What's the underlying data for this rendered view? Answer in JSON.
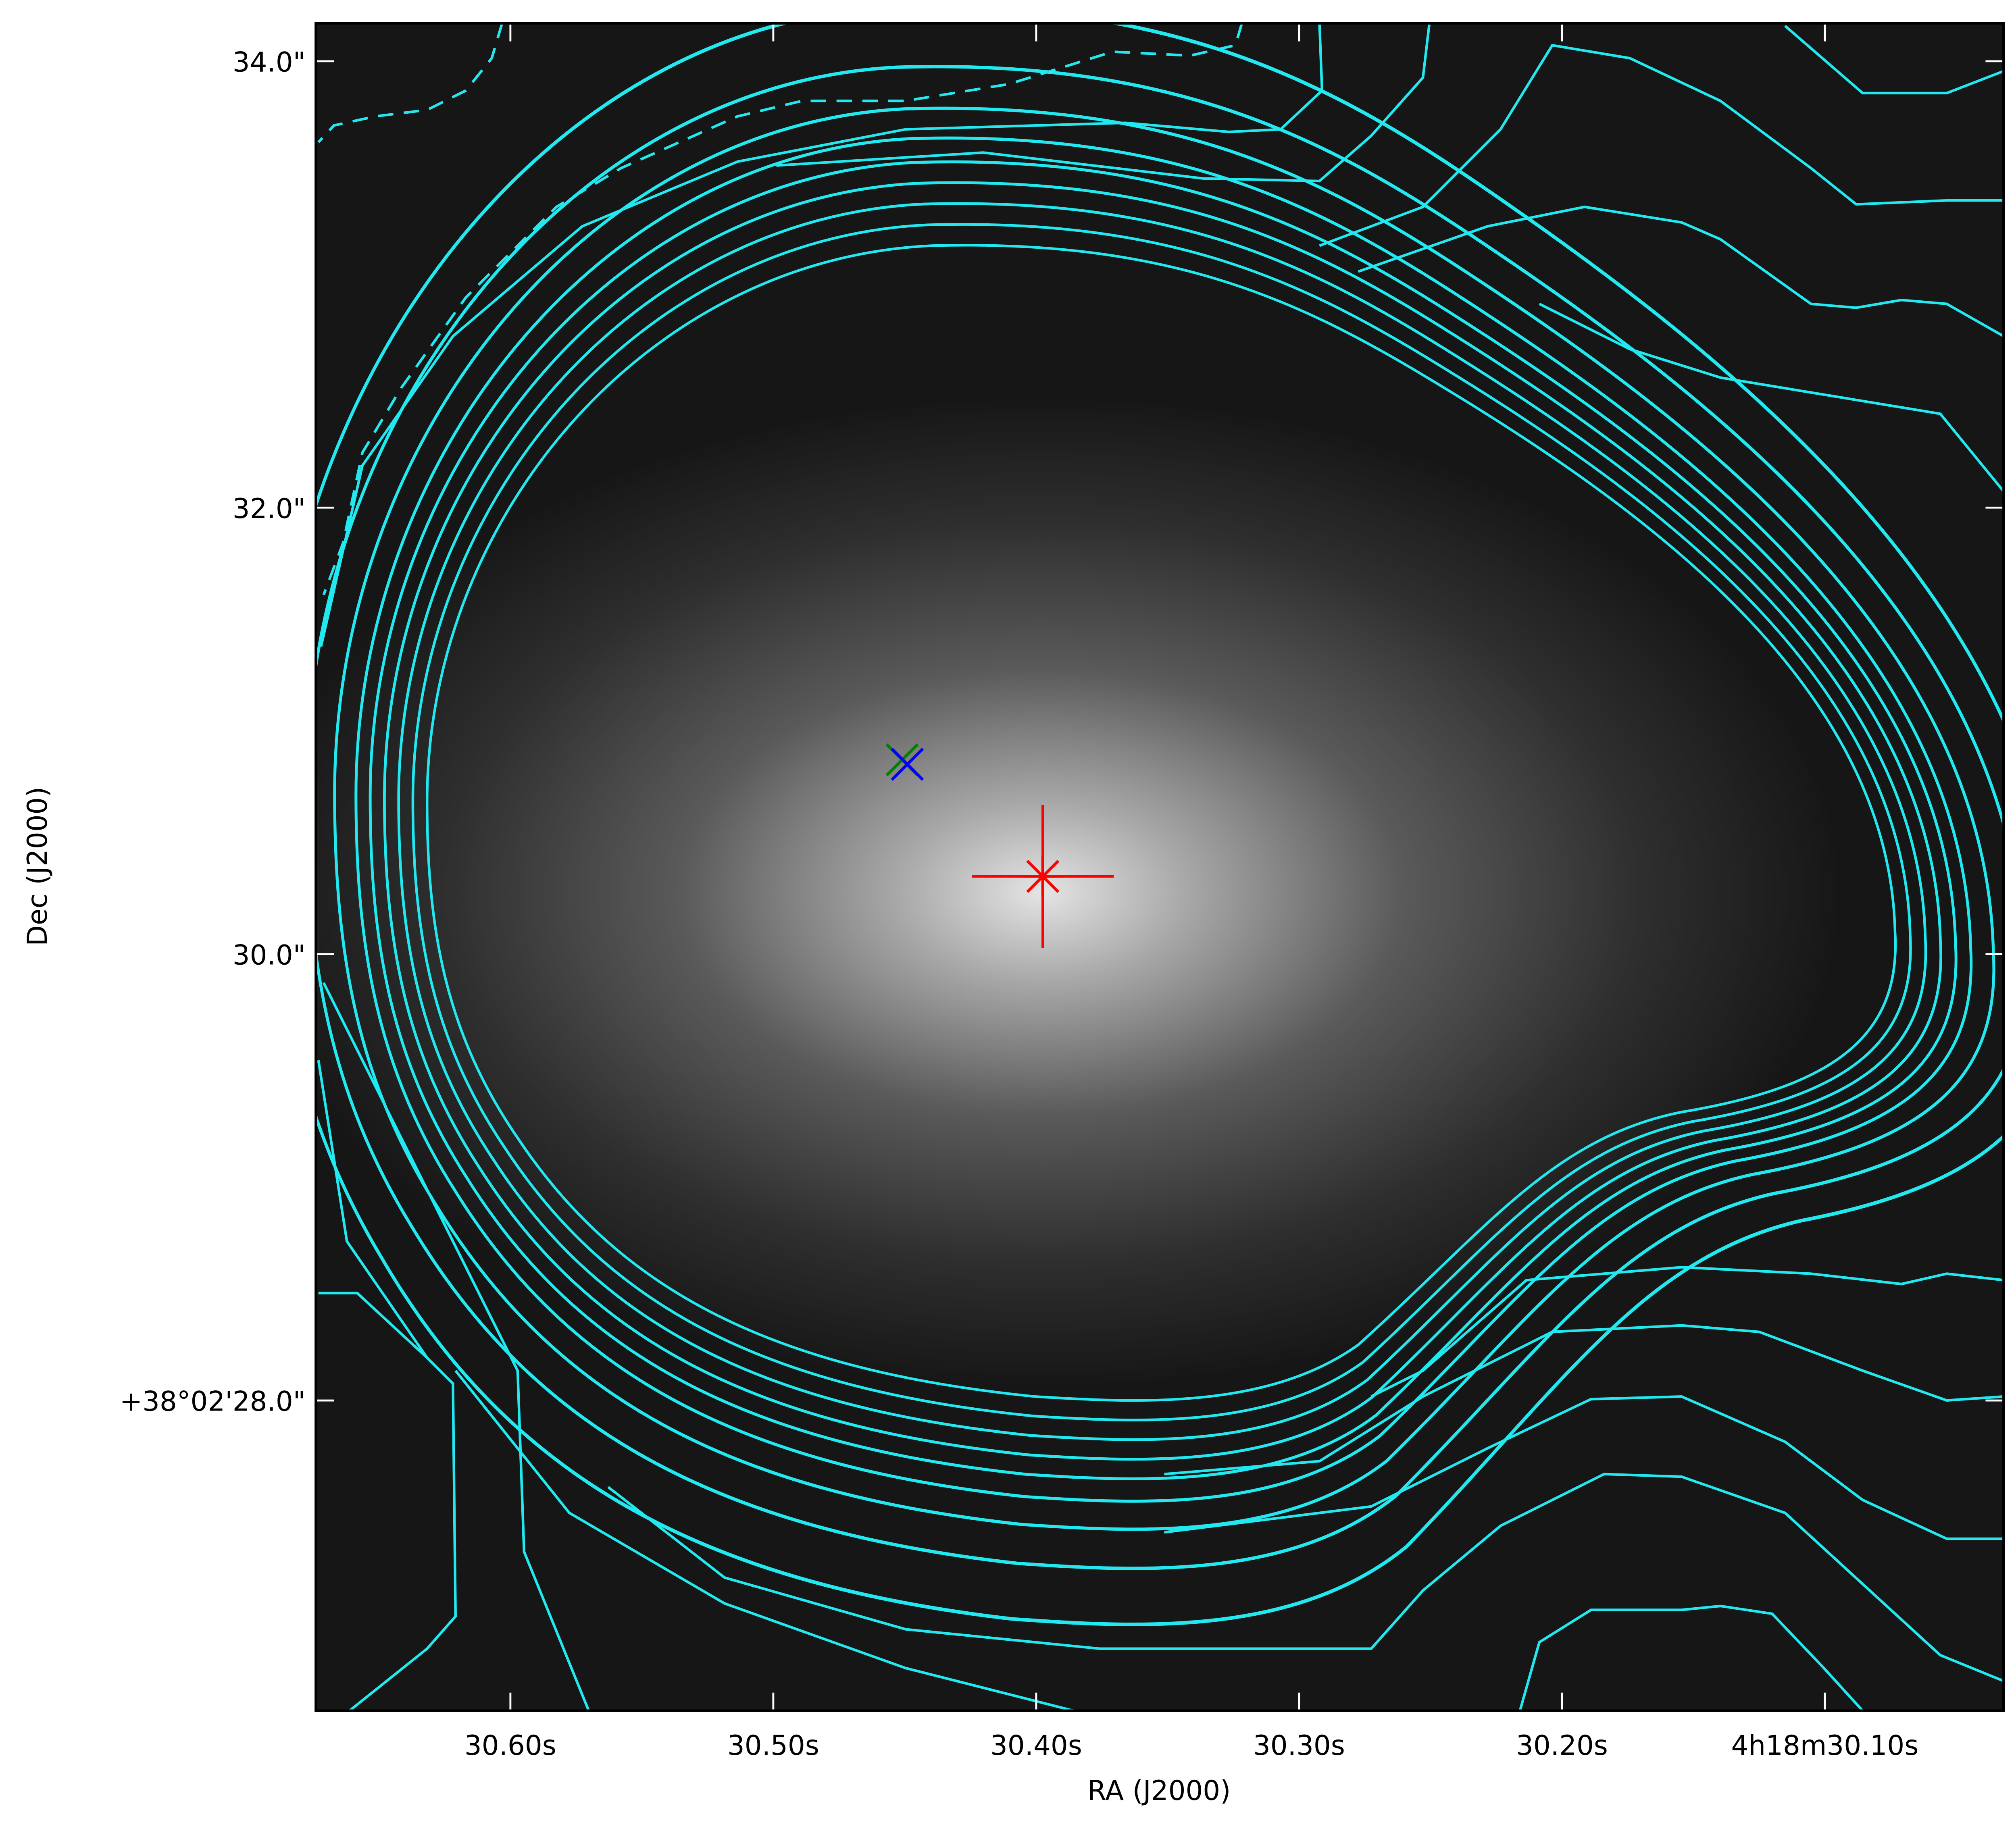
{
  "chart_data": {
    "type": "scatter",
    "xlabel": "RA (J2000)",
    "ylabel": "Dec (J2000)",
    "xlim": [
      30.674,
      30.032
    ],
    "ylim": [
      26.61,
      34.17
    ],
    "xticks": [
      {
        "value": 30.6,
        "label": "30.60s"
      },
      {
        "value": 30.5,
        "label": "30.50s"
      },
      {
        "value": 30.4,
        "label": "30.40s"
      },
      {
        "value": 30.3,
        "label": "30.30s"
      },
      {
        "value": 30.2,
        "label": "30.20s"
      },
      {
        "value": 30.1,
        "label": "4h18m30.10s"
      }
    ],
    "yticks": [
      {
        "value": 28,
        "label": "+38°02'28.0\""
      },
      {
        "value": 30,
        "label": "30.0\""
      },
      {
        "value": 32,
        "label": "32.0\""
      },
      {
        "value": 34,
        "label": "34.0\""
      }
    ],
    "series": [
      {
        "marker": "star",
        "color": "#ff0000",
        "x": [
          30.3975
        ],
        "values": [
          30.348
        ],
        "x_err": [
          0.027
        ],
        "y_err": [
          0.32
        ]
      },
      {
        "marker": "x",
        "color": "#008000",
        "x": [
          30.451
        ],
        "values": [
          30.87
        ]
      },
      {
        "marker": "x",
        "color": "#0000ff",
        "x": [
          30.449
        ],
        "values": [
          30.85
        ]
      }
    ]
  }
}
